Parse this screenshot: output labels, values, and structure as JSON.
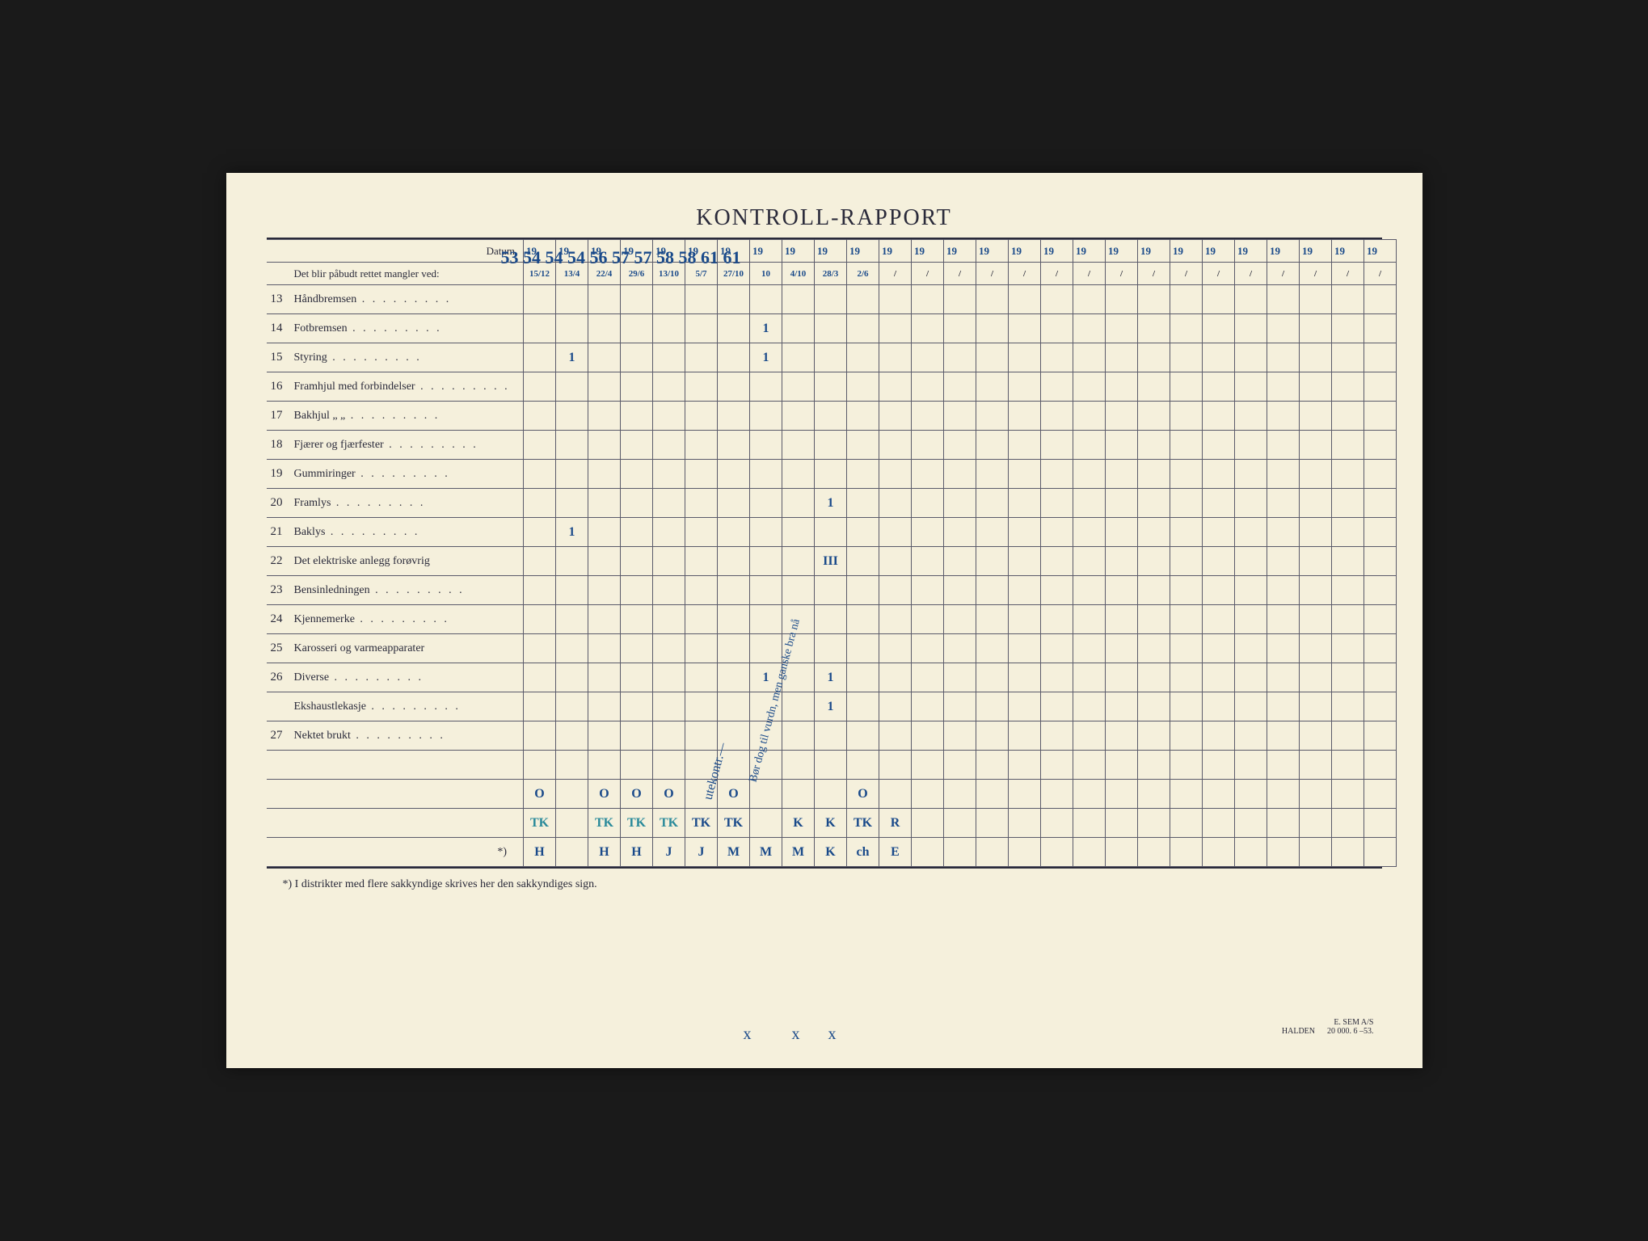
{
  "title": "KONTROLL-RAPPORT",
  "header": {
    "datum_label": "Datum",
    "subheader_label": "Det blir påbudt rettet mangler ved:",
    "year_prefix": "19",
    "handwritten_years": "53 54 54 54 56 57 57 58 58 61 61",
    "handwritten_dates": [
      "15/12",
      "13/4",
      "22/4",
      "29/6",
      "13/10",
      "5/7",
      "27/10",
      "10",
      "4/10",
      "28/3",
      "2/6",
      "",
      "",
      "",
      "",
      "",
      "",
      "",
      "",
      "",
      "",
      "",
      "",
      "",
      "",
      "",
      ""
    ]
  },
  "rows": [
    {
      "num": "13",
      "label": "Håndbremsen",
      "dots": true,
      "cells": [
        "",
        "",
        "",
        "",
        "",
        "",
        "",
        "",
        "",
        "",
        "",
        "",
        "",
        "",
        "",
        "",
        "",
        "",
        "",
        "",
        "",
        "",
        "",
        "",
        "",
        "",
        ""
      ]
    },
    {
      "num": "14",
      "label": "Fotbremsen",
      "dots": true,
      "cells": [
        "",
        "",
        "",
        "",
        "",
        "",
        "",
        "1",
        "",
        "",
        "",
        "",
        "",
        "",
        "",
        "",
        "",
        "",
        "",
        "",
        "",
        "",
        "",
        "",
        "",
        "",
        ""
      ]
    },
    {
      "num": "15",
      "label": "Styring",
      "dots": true,
      "cells": [
        "",
        "1",
        "",
        "",
        "",
        "",
        "",
        "1",
        "",
        "",
        "",
        "",
        "",
        "",
        "",
        "",
        "",
        "",
        "",
        "",
        "",
        "",
        "",
        "",
        "",
        "",
        ""
      ]
    },
    {
      "num": "16",
      "label": "Framhjul med forbindelser",
      "dots": true,
      "cells": [
        "",
        "",
        "",
        "",
        "",
        "",
        "",
        "",
        "",
        "",
        "",
        "",
        "",
        "",
        "",
        "",
        "",
        "",
        "",
        "",
        "",
        "",
        "",
        "",
        "",
        "",
        ""
      ]
    },
    {
      "num": "17",
      "label": "Bakhjul       „          „",
      "dots": true,
      "cells": [
        "",
        "",
        "",
        "",
        "",
        "",
        "",
        "",
        "",
        "",
        "",
        "",
        "",
        "",
        "",
        "",
        "",
        "",
        "",
        "",
        "",
        "",
        "",
        "",
        "",
        "",
        ""
      ]
    },
    {
      "num": "18",
      "label": "Fjærer og fjærfester",
      "dots": true,
      "cells": [
        "",
        "",
        "",
        "",
        "",
        "",
        "",
        "",
        "",
        "",
        "",
        "",
        "",
        "",
        "",
        "",
        "",
        "",
        "",
        "",
        "",
        "",
        "",
        "",
        "",
        "",
        ""
      ]
    },
    {
      "num": "19",
      "label": "Gummiringer",
      "dots": true,
      "cells": [
        "",
        "",
        "",
        "",
        "",
        "",
        "",
        "",
        "",
        "",
        "",
        "",
        "",
        "",
        "",
        "",
        "",
        "",
        "",
        "",
        "",
        "",
        "",
        "",
        "",
        "",
        ""
      ]
    },
    {
      "num": "20",
      "label": "Framlys",
      "dots": true,
      "cells": [
        "",
        "",
        "",
        "",
        "",
        "",
        "",
        "",
        "",
        "1",
        "",
        "",
        "",
        "",
        "",
        "",
        "",
        "",
        "",
        "",
        "",
        "",
        "",
        "",
        "",
        "",
        ""
      ]
    },
    {
      "num": "21",
      "label": "Baklys",
      "dots": true,
      "cells": [
        "",
        "1",
        "",
        "",
        "",
        "",
        "",
        "",
        "",
        "",
        "",
        "",
        "",
        "",
        "",
        "",
        "",
        "",
        "",
        "",
        "",
        "",
        "",
        "",
        "",
        "",
        ""
      ]
    },
    {
      "num": "22",
      "label": "Det elektriske anlegg forøvrig",
      "dots": false,
      "cells": [
        "",
        "",
        "",
        "",
        "",
        "",
        "",
        "",
        "",
        "III",
        "",
        "",
        "",
        "",
        "",
        "",
        "",
        "",
        "",
        "",
        "",
        "",
        "",
        "",
        "",
        "",
        ""
      ]
    },
    {
      "num": "23",
      "label": "Bensinledningen",
      "dots": true,
      "cells": [
        "",
        "",
        "",
        "",
        "",
        "",
        "",
        "",
        "",
        "",
        "",
        "",
        "",
        "",
        "",
        "",
        "",
        "",
        "",
        "",
        "",
        "",
        "",
        "",
        "",
        "",
        ""
      ]
    },
    {
      "num": "24",
      "label": "Kjennemerke",
      "dots": true,
      "cells": [
        "",
        "",
        "",
        "",
        "",
        "",
        "",
        "",
        "",
        "",
        "",
        "",
        "",
        "",
        "",
        "",
        "",
        "",
        "",
        "",
        "",
        "",
        "",
        "",
        "",
        "",
        ""
      ]
    },
    {
      "num": "25",
      "label": "Karosseri og varmeapparater",
      "dots": false,
      "cells": [
        "",
        "",
        "",
        "",
        "",
        "",
        "",
        "",
        "",
        "",
        "",
        "",
        "",
        "",
        "",
        "",
        "",
        "",
        "",
        "",
        "",
        "",
        "",
        "",
        "",
        "",
        ""
      ]
    },
    {
      "num": "26",
      "label": "Diverse",
      "dots": true,
      "cells": [
        "",
        "",
        "",
        "",
        "",
        "",
        "",
        "1",
        "",
        "1",
        "",
        "",
        "",
        "",
        "",
        "",
        "",
        "",
        "",
        "",
        "",
        "",
        "",
        "",
        "",
        "",
        ""
      ]
    },
    {
      "num": "",
      "label": "Ekshaustlekasje",
      "dots": true,
      "cells": [
        "",
        "",
        "",
        "",
        "",
        "",
        "",
        "",
        "",
        "1",
        "",
        "",
        "",
        "",
        "",
        "",
        "",
        "",
        "",
        "",
        "",
        "",
        "",
        "",
        "",
        "",
        ""
      ]
    },
    {
      "num": "27",
      "label": "Nektet brukt",
      "dots": true,
      "cells": [
        "",
        "",
        "",
        "",
        "",
        "",
        "",
        "",
        "",
        "",
        "",
        "",
        "",
        "",
        "",
        "",
        "",
        "",
        "",
        "",
        "",
        "",
        "",
        "",
        "",
        "",
        ""
      ]
    }
  ],
  "bottom_rows": [
    {
      "label": "",
      "cells": [
        "O",
        "",
        "O",
        "O",
        "O",
        "",
        "O",
        "",
        "",
        "",
        "O",
        "",
        "",
        "",
        "",
        "",
        "",
        "",
        "",
        "",
        "",
        "",
        "",
        "",
        "",
        "",
        ""
      ]
    },
    {
      "label": "",
      "cells": [
        "TK",
        "",
        "TK",
        "TK",
        "TK",
        "TK",
        "TK",
        "",
        "K",
        "K",
        "TK",
        "R",
        "",
        "",
        "",
        "",
        "",
        "",
        "",
        "",
        "",
        "",
        "",
        "",
        "",
        "",
        ""
      ]
    },
    {
      "label": "*)",
      "cells": [
        "H",
        "",
        "H",
        "H",
        "J",
        "J",
        "M",
        "M",
        "M",
        "K",
        "ch",
        "E",
        "",
        "",
        "",
        "",
        "",
        "",
        "",
        "",
        "",
        "",
        "",
        "",
        "",
        "",
        ""
      ]
    }
  ],
  "diagonal_text": "utekontr.—",
  "diagonal_text2": "Bør dog til vurdn, men ganske bra nå",
  "footnote": "*) I distrikter med flere sakkyndige skrives her den sakkyndiges sign.",
  "printer": {
    "line1": "E. SEM A/S",
    "line2": "HALDEN",
    "line3": "20 000.   6 –53."
  },
  "x_marks": [
    "x",
    "x",
    "x"
  ],
  "colors": {
    "paper": "#f5f0dc",
    "ink": "#2a2a3a",
    "pen_blue": "#1a4a8a",
    "pen_teal": "#2a8a9a",
    "grid": "#5a5a6a"
  }
}
